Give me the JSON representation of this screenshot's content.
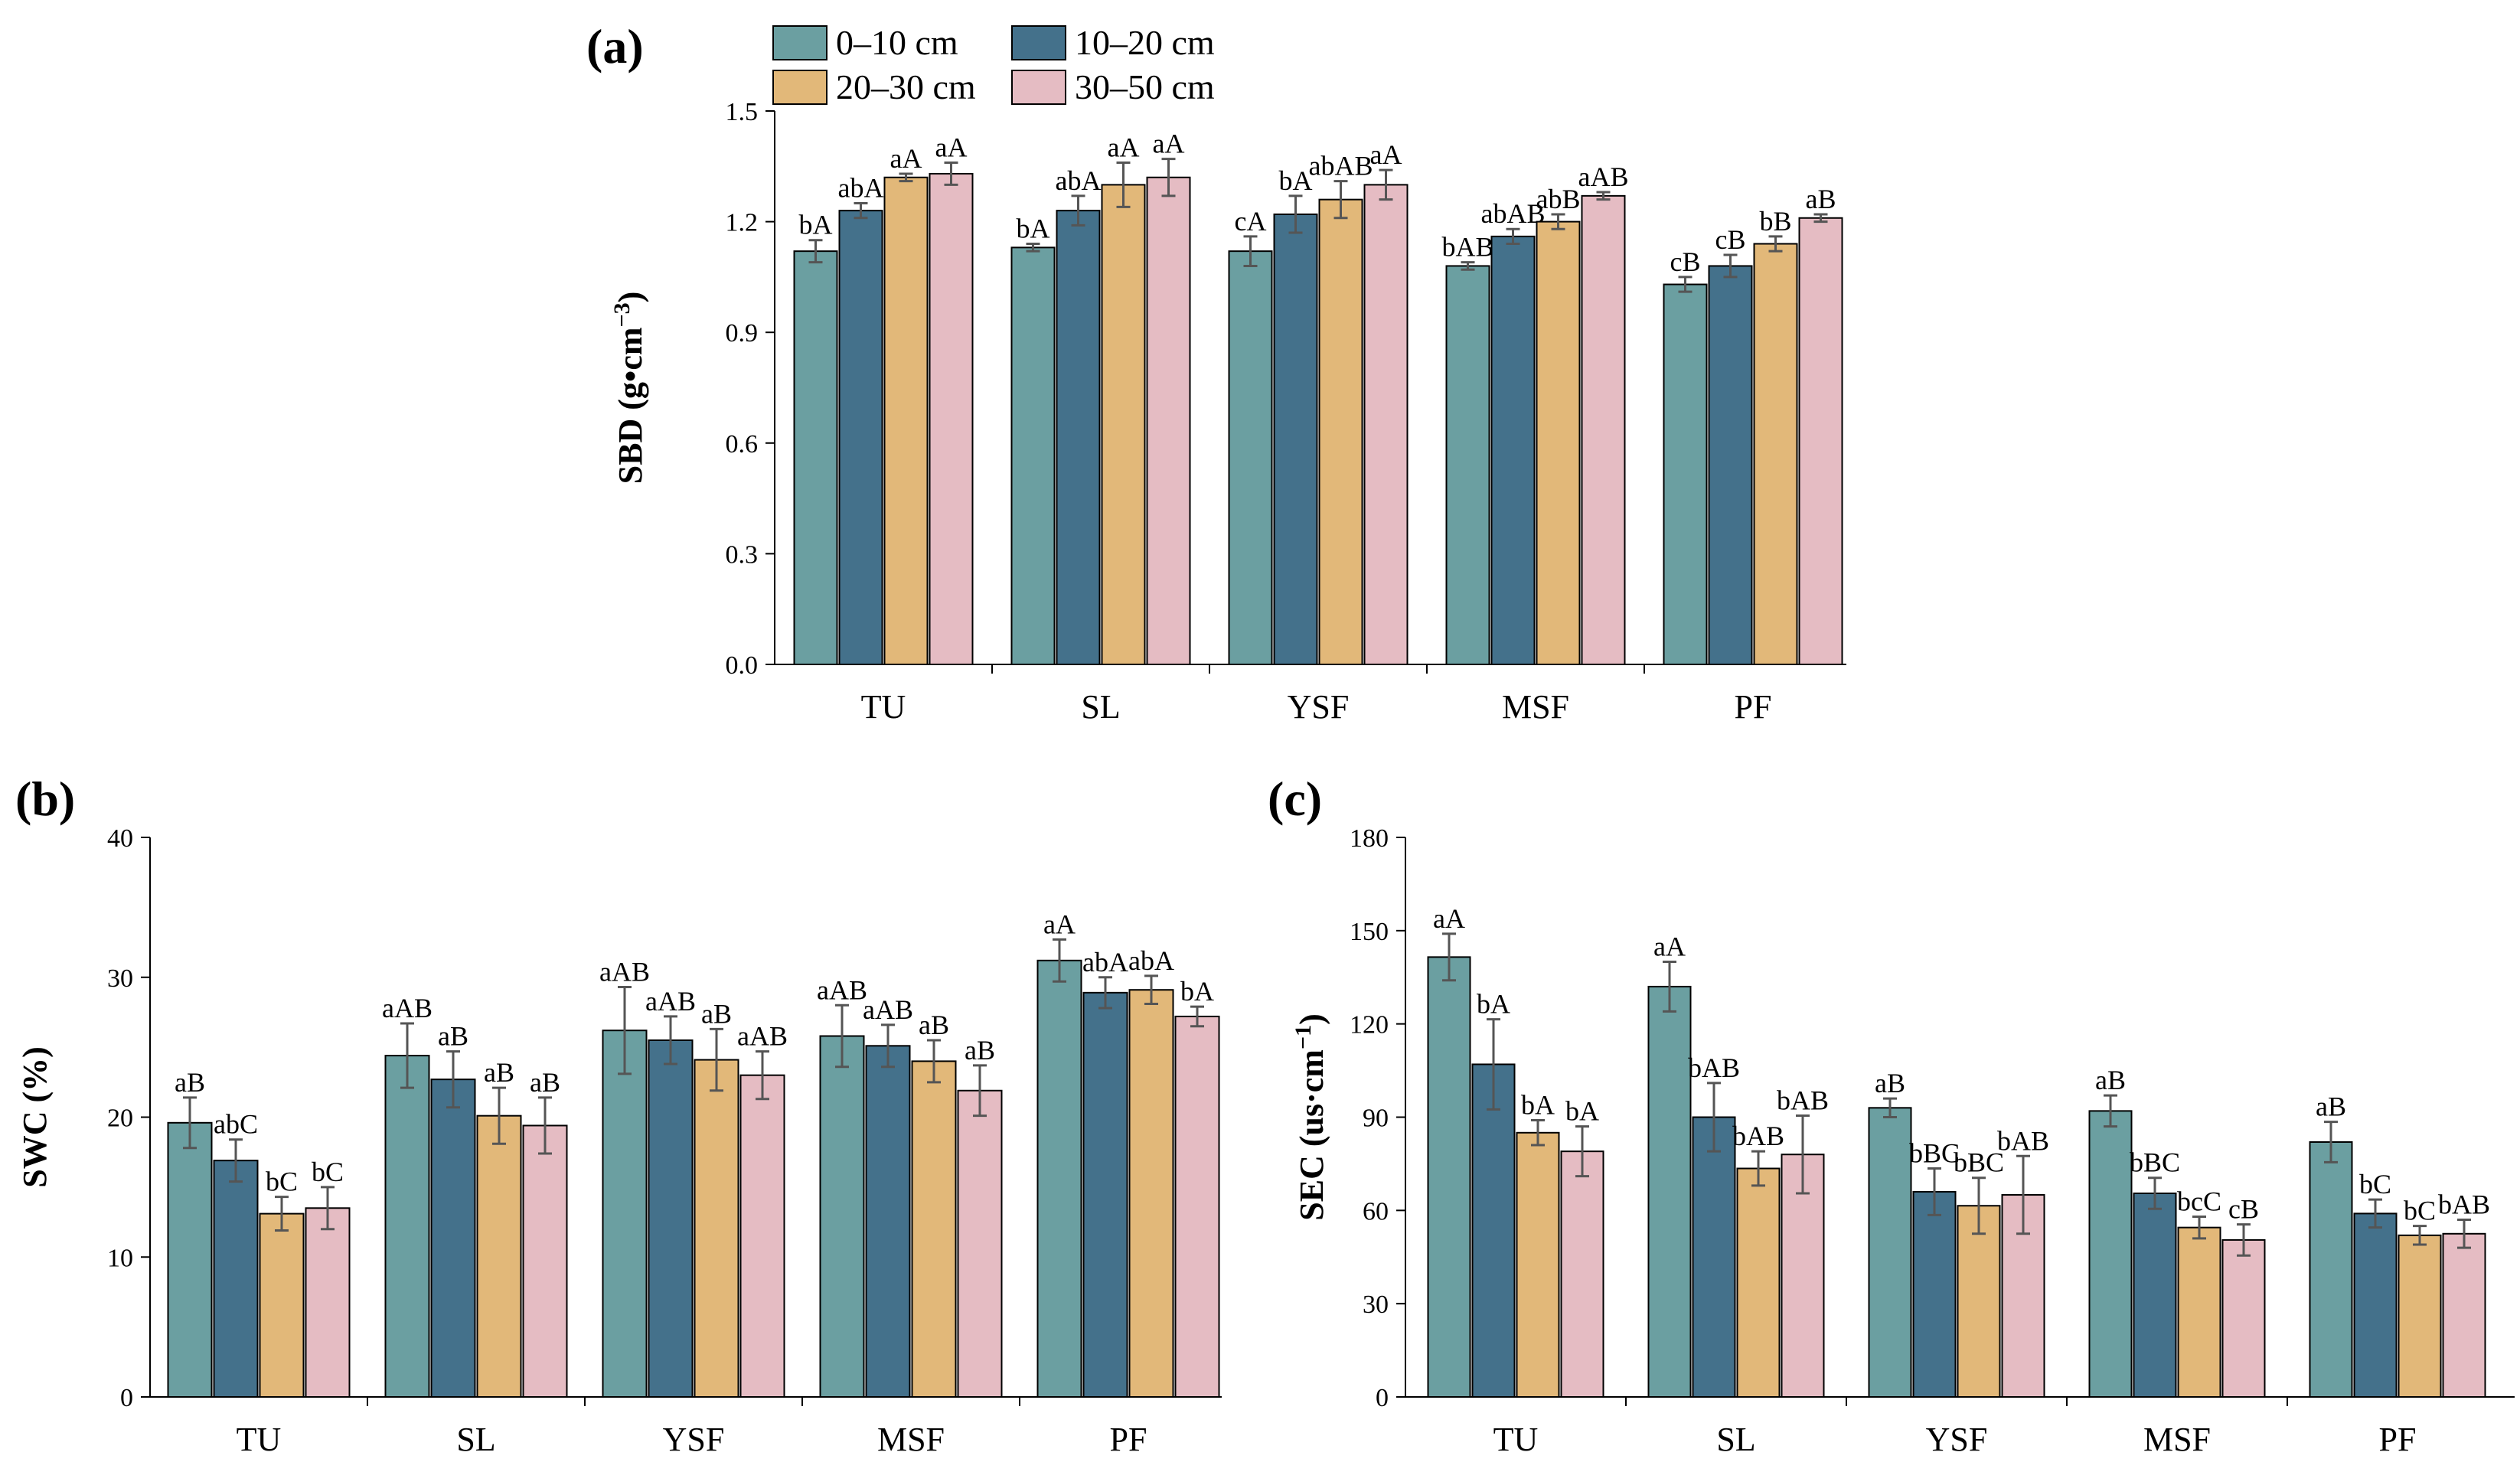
{
  "chart_data": [
    {
      "id": "a",
      "type": "bar",
      "panel_label": "(a)",
      "ylabel": "SBD (g•cm",
      "ylabel_sup": "−3",
      "ylabel_close": ")",
      "ylim": [
        0,
        1.5
      ],
      "yticks": [
        "0.0",
        "0.3",
        "0.6",
        "0.9",
        "1.2",
        "1.5"
      ],
      "categories": [
        "TU",
        "SL",
        "YSF",
        "MSF",
        "PF"
      ],
      "series": [
        {
          "name": "0–10 cm",
          "values": [
            1.12,
            1.13,
            1.12,
            1.08,
            1.03
          ],
          "errors": [
            0.03,
            0.01,
            0.04,
            0.01,
            0.02
          ],
          "labels": [
            "bA",
            "bA",
            "cA",
            "bAB",
            "cB"
          ]
        },
        {
          "name": "10–20 cm",
          "values": [
            1.23,
            1.23,
            1.22,
            1.16,
            1.08
          ],
          "errors": [
            0.02,
            0.04,
            0.05,
            0.02,
            0.03
          ],
          "labels": [
            "abA",
            "abA",
            "bA",
            "abAB",
            "cB"
          ]
        },
        {
          "name": "20–30 cm",
          "values": [
            1.32,
            1.3,
            1.26,
            1.2,
            1.14
          ],
          "errors": [
            0.01,
            0.06,
            0.05,
            0.02,
            0.02
          ],
          "labels": [
            "aA",
            "aA",
            "abAB",
            "abB",
            "bB"
          ]
        },
        {
          "name": "30–50 cm",
          "values": [
            1.33,
            1.32,
            1.3,
            1.27,
            1.21
          ],
          "errors": [
            0.03,
            0.05,
            0.04,
            0.01,
            0.01
          ],
          "labels": [
            "aA",
            "aA",
            "aA",
            "aAB",
            "aB"
          ]
        }
      ],
      "legend": "top"
    },
    {
      "id": "b",
      "type": "bar",
      "panel_label": "(b)",
      "ylabel": "SWC (%)",
      "ylabel_sup": "",
      "ylabel_close": "",
      "ylim": [
        0,
        40
      ],
      "yticks": [
        "0",
        "10",
        "20",
        "30",
        "40"
      ],
      "categories": [
        "TU",
        "SL",
        "YSF",
        "MSF",
        "PF"
      ],
      "series": [
        {
          "name": "0–10 cm",
          "values": [
            19.6,
            24.4,
            26.2,
            25.8,
            31.2
          ],
          "errors": [
            1.8,
            2.3,
            3.1,
            2.2,
            1.5
          ],
          "labels": [
            "aB",
            "aAB",
            "aAB",
            "aAB",
            "aA"
          ]
        },
        {
          "name": "10–20 cm",
          "values": [
            16.9,
            22.7,
            25.5,
            25.1,
            28.9
          ],
          "errors": [
            1.5,
            2.0,
            1.7,
            1.5,
            1.1
          ],
          "labels": [
            "abC",
            "aB",
            "aAB",
            "aAB",
            "abA"
          ]
        },
        {
          "name": "20–30 cm",
          "values": [
            13.1,
            20.1,
            24.1,
            24.0,
            29.1
          ],
          "errors": [
            1.2,
            2.0,
            2.2,
            1.5,
            1.0
          ],
          "labels": [
            "bC",
            "aB",
            "aB",
            "aB",
            "abA"
          ]
        },
        {
          "name": "30–50 cm",
          "values": [
            13.5,
            19.4,
            23.0,
            21.9,
            27.2
          ],
          "errors": [
            1.5,
            2.0,
            1.7,
            1.8,
            0.7
          ],
          "labels": [
            "bC",
            "aB",
            "aAB",
            "aB",
            "bA"
          ]
        }
      ]
    },
    {
      "id": "c",
      "type": "bar",
      "panel_label": "(c)",
      "ylabel": "SEC (us·cm",
      "ylabel_sup": "−1",
      "ylabel_close": ")",
      "ylim": [
        0,
        180
      ],
      "yticks": [
        "0",
        "30",
        "60",
        "90",
        "120",
        "150",
        "180"
      ],
      "categories": [
        "TU",
        "SL",
        "YSF",
        "MSF",
        "PF"
      ],
      "series": [
        {
          "name": "0–10 cm",
          "values": [
            141.5,
            132.0,
            93.0,
            92.0,
            82.0
          ],
          "errors": [
            7.5,
            8.0,
            3.0,
            5.0,
            6.5
          ],
          "labels": [
            "aA",
            "aA",
            "aB",
            "aB",
            "aB"
          ]
        },
        {
          "name": "10–20 cm",
          "values": [
            107.0,
            90.0,
            66.0,
            65.5,
            59.0
          ],
          "errors": [
            14.5,
            11.0,
            7.5,
            5.0,
            4.5
          ],
          "labels": [
            "bA",
            "bAB",
            "bBC",
            "bBC",
            "bC"
          ]
        },
        {
          "name": "20–30 cm",
          "values": [
            85.0,
            73.5,
            61.5,
            54.5,
            52.0
          ],
          "errors": [
            4.0,
            5.5,
            9.0,
            3.5,
            3.0
          ],
          "labels": [
            "bA",
            "bAB",
            "bBC",
            "bcC",
            "bC"
          ]
        },
        {
          "name": "30–50 cm",
          "values": [
            79.0,
            78.0,
            65.0,
            50.5,
            52.5
          ],
          "errors": [
            8.0,
            12.5,
            12.5,
            5.0,
            4.5
          ],
          "labels": [
            "bA",
            "bAB",
            "bAB",
            "cB",
            "bAB"
          ]
        }
      ]
    }
  ],
  "colors": {
    "series": [
      "#6b9fa1",
      "#44718b",
      "#e2b879",
      "#e5bcc3"
    ]
  }
}
